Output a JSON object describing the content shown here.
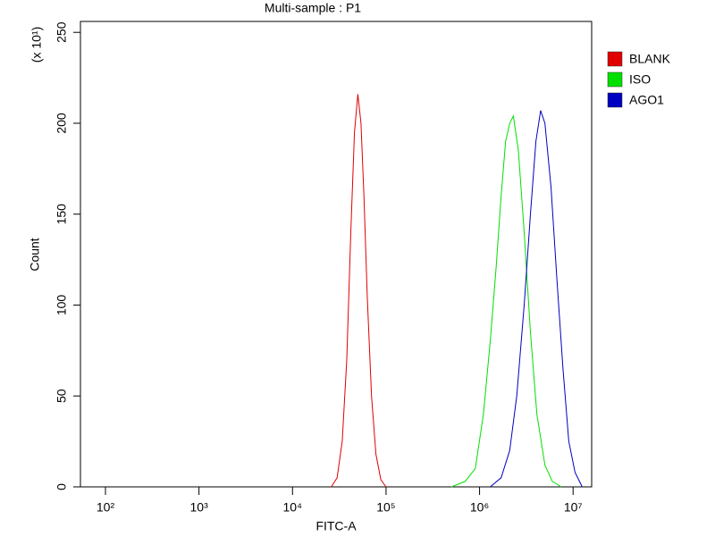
{
  "chart_data": {
    "type": "line",
    "title": "Multi-sample : P1",
    "x_label": "FITC-A",
    "y_label": "Count",
    "y_multiplier": "(x 10¹)",
    "xscale": "log",
    "xlim": [
      54,
      15800000
    ],
    "ylim": [
      0,
      256
    ],
    "xticks": [
      {
        "value": 100,
        "label": "10²"
      },
      {
        "value": 1000,
        "label": "10³"
      },
      {
        "value": 10000,
        "label": "10⁴"
      },
      {
        "value": 100000,
        "label": "10⁵"
      },
      {
        "value": 1000000,
        "label": "10⁶"
      },
      {
        "value": 10000000,
        "label": "10⁷"
      }
    ],
    "yticks": [
      0,
      50,
      100,
      150,
      200,
      250
    ],
    "legend_position": "right",
    "series": [
      {
        "name": "BLANK",
        "color": "#e00000",
        "x": [
          26000,
          30000,
          34000,
          38000,
          42000,
          46000,
          50000,
          54000,
          58000,
          63000,
          70000,
          78000,
          88000,
          100000
        ],
        "values": [
          0,
          5,
          25,
          70,
          140,
          195,
          216,
          200,
          160,
          105,
          50,
          18,
          4,
          0
        ]
      },
      {
        "name": "ISO",
        "color": "#00e000",
        "x": [
          500000,
          700000,
          900000,
          1100000,
          1300000,
          1500000,
          1700000,
          1900000,
          2100000,
          2300000,
          2600000,
          3000000,
          3500000,
          4100000,
          5000000,
          6000000,
          7500000
        ],
        "values": [
          0,
          3,
          10,
          40,
          80,
          120,
          160,
          190,
          200,
          204,
          185,
          140,
          85,
          40,
          12,
          3,
          0
        ]
      },
      {
        "name": "AGO1",
        "color": "#0000c0",
        "x": [
          1300000,
          1700000,
          2100000,
          2500000,
          3000000,
          3500000,
          4000000,
          4500000,
          5000000,
          5800000,
          6700000,
          7800000,
          9000000,
          10500000,
          12500000
        ],
        "values": [
          0,
          5,
          20,
          50,
          100,
          150,
          190,
          207,
          200,
          165,
          115,
          65,
          25,
          8,
          0
        ]
      }
    ]
  }
}
